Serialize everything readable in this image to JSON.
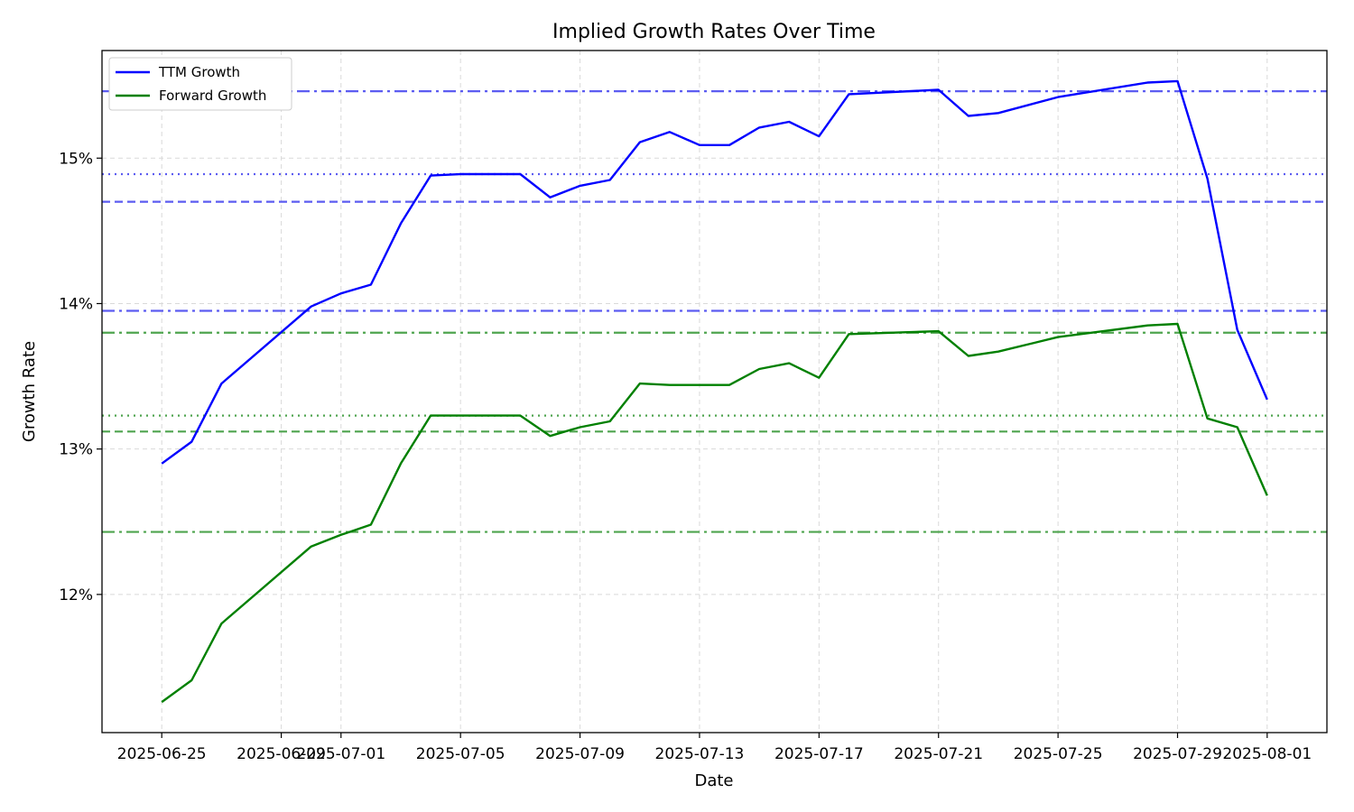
{
  "chart_data": {
    "type": "line",
    "title": "Implied Growth Rates Over Time",
    "xlabel": "Date",
    "ylabel": "Growth Rate",
    "x": [
      "2025-06-25",
      "2025-06-26",
      "2025-06-27",
      "2025-06-30",
      "2025-07-01",
      "2025-07-02",
      "2025-07-03",
      "2025-07-04",
      "2025-07-05",
      "2025-07-07",
      "2025-07-08",
      "2025-07-09",
      "2025-07-10",
      "2025-07-11",
      "2025-07-12",
      "2025-07-13",
      "2025-07-14",
      "2025-07-15",
      "2025-07-16",
      "2025-07-17",
      "2025-07-18",
      "2025-07-21",
      "2025-07-22",
      "2025-07-23",
      "2025-07-25",
      "2025-07-28",
      "2025-07-29",
      "2025-07-30",
      "2025-07-31",
      "2025-08-01"
    ],
    "series": [
      {
        "name": "TTM Growth",
        "color": "#0000ff",
        "values": [
          12.9,
          13.05,
          13.45,
          13.98,
          14.07,
          14.13,
          14.55,
          14.88,
          14.89,
          14.89,
          14.73,
          14.81,
          14.85,
          15.11,
          15.18,
          15.09,
          15.09,
          15.21,
          15.25,
          15.15,
          15.44,
          15.47,
          15.29,
          15.31,
          15.42,
          15.52,
          15.53,
          14.86,
          13.82,
          13.34
        ]
      },
      {
        "name": "Forward Growth",
        "color": "#008000",
        "values": [
          11.26,
          11.41,
          11.8,
          12.33,
          12.41,
          12.48,
          12.9,
          13.23,
          13.23,
          13.23,
          13.09,
          13.15,
          13.19,
          13.45,
          13.44,
          13.44,
          13.44,
          13.55,
          13.59,
          13.49,
          13.79,
          13.81,
          13.64,
          13.67,
          13.77,
          13.85,
          13.86,
          13.21,
          13.15,
          12.68
        ]
      }
    ],
    "reference_lines": [
      {
        "value": 15.46,
        "color": "#4a4af0",
        "style": "dashdot"
      },
      {
        "value": 14.89,
        "color": "#4a4af0",
        "style": "dotted"
      },
      {
        "value": 14.7,
        "color": "#4a4af0",
        "style": "dashed"
      },
      {
        "value": 13.95,
        "color": "#4a4af0",
        "style": "dashdot"
      },
      {
        "value": 13.8,
        "color": "#3c9a3c",
        "style": "dashdot"
      },
      {
        "value": 13.23,
        "color": "#3c9a3c",
        "style": "dotted"
      },
      {
        "value": 13.12,
        "color": "#3c9a3c",
        "style": "dashed"
      },
      {
        "value": 12.43,
        "color": "#3c9a3c",
        "style": "dashdot"
      }
    ],
    "xlim": [
      "2025-06-23",
      "2025-08-03"
    ],
    "ylim": [
      11.05,
      15.74
    ],
    "x_ticks": [
      "2025-06-25",
      "2025-06-29",
      "2025-07-01",
      "2025-07-05",
      "2025-07-09",
      "2025-07-13",
      "2025-07-17",
      "2025-07-21",
      "2025-07-25",
      "2025-07-29",
      "2025-08-01"
    ],
    "y_ticks": [
      {
        "value": 12,
        "label": "12%"
      },
      {
        "value": 13,
        "label": "13%"
      },
      {
        "value": 14,
        "label": "14%"
      },
      {
        "value": 15,
        "label": "15%"
      }
    ],
    "grid": true,
    "legend_position": "top-left"
  }
}
